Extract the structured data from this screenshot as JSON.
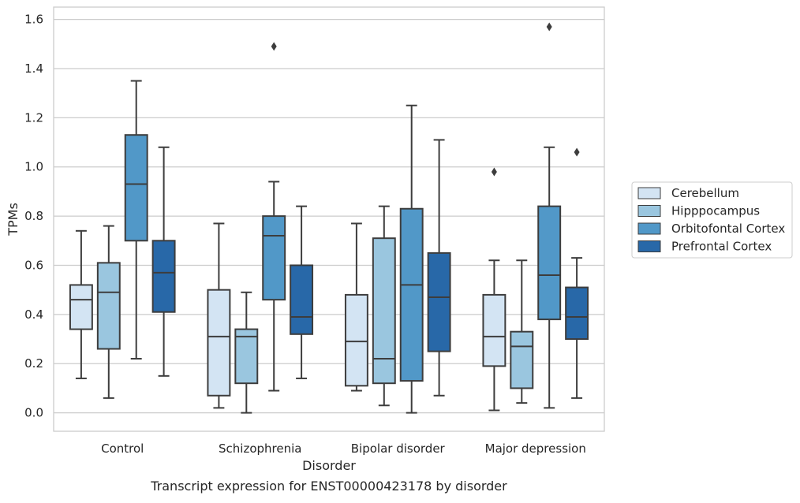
{
  "chart_data": {
    "type": "box",
    "title": "",
    "caption": "Transcript expression for ENST00000423178 by disorder",
    "xlabel": "Disorder",
    "ylabel": "TPMs",
    "ylim": [
      -0.075,
      1.65
    ],
    "yticks": [
      0.0,
      0.2,
      0.4,
      0.6,
      0.8,
      1.0,
      1.2,
      1.4,
      1.6
    ],
    "ytick_labels": [
      "0.0",
      "0.2",
      "0.4",
      "0.6",
      "0.8",
      "1.0",
      "1.2",
      "1.4",
      "1.6"
    ],
    "grid": "horizontal",
    "legend_position": "right",
    "categories": [
      "Control",
      "Schizophrenia",
      "Bipolar disorder",
      "Major depression"
    ],
    "series": [
      {
        "name": "Cerebellum",
        "color": "#d3e4f3",
        "boxes": [
          {
            "whisker_low": 0.14,
            "q1": 0.34,
            "median": 0.46,
            "q3": 0.52,
            "whisker_high": 0.74,
            "outliers": []
          },
          {
            "whisker_low": 0.02,
            "q1": 0.07,
            "median": 0.31,
            "q3": 0.5,
            "whisker_high": 0.77,
            "outliers": []
          },
          {
            "whisker_low": 0.09,
            "q1": 0.11,
            "median": 0.29,
            "q3": 0.48,
            "whisker_high": 0.77,
            "outliers": []
          },
          {
            "whisker_low": 0.01,
            "q1": 0.19,
            "median": 0.31,
            "q3": 0.48,
            "whisker_high": 0.62,
            "outliers": [
              0.98
            ]
          }
        ]
      },
      {
        "name": "Hipppocampus",
        "color": "#9ac6df",
        "boxes": [
          {
            "whisker_low": 0.06,
            "q1": 0.26,
            "median": 0.49,
            "q3": 0.61,
            "whisker_high": 0.76,
            "outliers": []
          },
          {
            "whisker_low": 0.0,
            "q1": 0.12,
            "median": 0.31,
            "q3": 0.34,
            "whisker_high": 0.49,
            "outliers": []
          },
          {
            "whisker_low": 0.03,
            "q1": 0.12,
            "median": 0.22,
            "q3": 0.71,
            "whisker_high": 0.84,
            "outliers": []
          },
          {
            "whisker_low": 0.04,
            "q1": 0.1,
            "median": 0.27,
            "q3": 0.33,
            "whisker_high": 0.62,
            "outliers": []
          }
        ]
      },
      {
        "name": "Orbitofontal Cortex",
        "color": "#5198c8",
        "boxes": [
          {
            "whisker_low": 0.22,
            "q1": 0.7,
            "median": 0.93,
            "q3": 1.13,
            "whisker_high": 1.35,
            "outliers": []
          },
          {
            "whisker_low": 0.09,
            "q1": 0.46,
            "median": 0.72,
            "q3": 0.8,
            "whisker_high": 0.94,
            "outliers": [
              1.49
            ]
          },
          {
            "whisker_low": 0.0,
            "q1": 0.13,
            "median": 0.52,
            "q3": 0.83,
            "whisker_high": 1.25,
            "outliers": []
          },
          {
            "whisker_low": 0.02,
            "q1": 0.38,
            "median": 0.56,
            "q3": 0.84,
            "whisker_high": 1.08,
            "outliers": [
              1.57
            ]
          }
        ]
      },
      {
        "name": "Prefrontal Cortex",
        "color": "#2868a8",
        "boxes": [
          {
            "whisker_low": 0.15,
            "q1": 0.41,
            "median": 0.57,
            "q3": 0.7,
            "whisker_high": 1.08,
            "outliers": []
          },
          {
            "whisker_low": 0.14,
            "q1": 0.32,
            "median": 0.39,
            "q3": 0.6,
            "whisker_high": 0.84,
            "outliers": []
          },
          {
            "whisker_low": 0.07,
            "q1": 0.25,
            "median": 0.47,
            "q3": 0.65,
            "whisker_high": 1.11,
            "outliers": []
          },
          {
            "whisker_low": 0.06,
            "q1": 0.3,
            "median": 0.39,
            "q3": 0.51,
            "whisker_high": 0.63,
            "outliers": [
              1.06
            ]
          }
        ]
      }
    ]
  },
  "colors": {
    "grid": "#cccccc",
    "frame": "#cccccc",
    "box_edge": "#3d3d3d",
    "text": "#262626"
  }
}
